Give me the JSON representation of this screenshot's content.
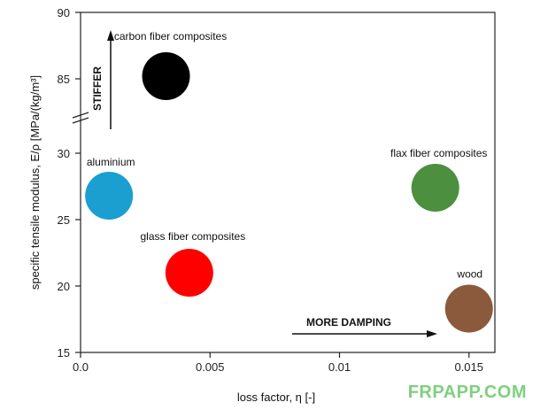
{
  "chart_data": {
    "type": "scatter",
    "title": "",
    "xlabel": "loss factor, η [-]",
    "ylabel": "specific tensile modulus, E/ρ [MPa/(kg/m³]",
    "xlim": [
      0.0,
      0.016
    ],
    "ylim": [
      15,
      90
    ],
    "y_axis_break": {
      "lower_range": [
        15,
        32
      ],
      "upper_range": [
        82,
        90
      ]
    },
    "x_ticks": [
      "0.0",
      "0.005",
      "0.01",
      "0.015"
    ],
    "y_ticks": [
      "15",
      "20",
      "25",
      "30",
      "85",
      "90"
    ],
    "grid": false,
    "points": [
      {
        "label": "carbon fiber composites",
        "x": 0.0033,
        "y": 85.2,
        "color": "#000000"
      },
      {
        "label": "aluminium",
        "x": 0.0011,
        "y": 26.8,
        "color": "#1a9fd0"
      },
      {
        "label": "flax fiber composites",
        "x": 0.0137,
        "y": 27.4,
        "color": "#4c8f3e"
      },
      {
        "label": "glass fiber composites",
        "x": 0.0042,
        "y": 21.0,
        "color": "#ff0000"
      },
      {
        "label": "wood",
        "x": 0.015,
        "y": 18.3,
        "color": "#8b5a3c"
      }
    ],
    "annotations": [
      {
        "text": "STIFFER",
        "direction": "up"
      },
      {
        "text": "MORE DAMPING",
        "direction": "right"
      }
    ]
  },
  "watermark": "FRPAPP.COM"
}
